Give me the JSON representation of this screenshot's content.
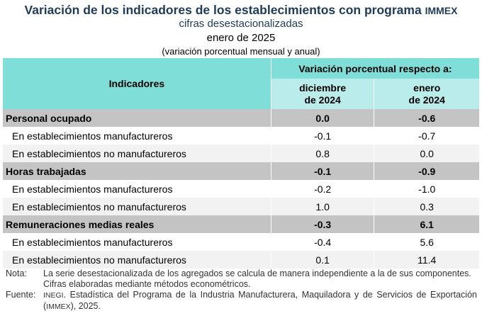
{
  "header": {
    "title": "Variación de los indicadores de los establecimientos con programa",
    "title_tag": "IMMEX",
    "subtitle": "cifras desestacionalizadas",
    "date": "enero de 2025",
    "unit": "(variación porcentual mensual y anual)"
  },
  "table": {
    "col_indicadores": "Indicadores",
    "col_group": "Variación porcentual respecto a:",
    "col_a": [
      "diciembre",
      "de 2024"
    ],
    "col_b": [
      "enero",
      "de 2024"
    ],
    "rows": [
      {
        "label": "Personal ocupado",
        "m": "0.0",
        "a": "-0.6"
      },
      {
        "label": "En establecimientos manufactureros",
        "m": "-0.1",
        "a": "-0.7"
      },
      {
        "label": "En establecimientos no manufactureros",
        "m": "0.8",
        "a": "0.0"
      },
      {
        "label": "Horas trabajadas",
        "m": "-0.1",
        "a": "-0.9"
      },
      {
        "label": "En establecimientos manufactureros",
        "m": "-0.2",
        "a": "-1.0"
      },
      {
        "label": "En establecimientos no manufactureros",
        "m": "1.0",
        "a": "0.3"
      },
      {
        "label": "Remuneraciones medias reales",
        "m": "-0.3",
        "a": "6.1"
      },
      {
        "label": "En establecimientos manufactureros",
        "m": "-0.4",
        "a": "5.6"
      },
      {
        "label": "En establecimientos no manufactureros",
        "m": "0.1",
        "a": "11.4"
      }
    ]
  },
  "notes": {
    "nota_label": "Nota:",
    "nota_1": "La serie desestacionalizada de los agregados se calcula de manera independiente a la de sus componentes.",
    "nota_2": "Cifras elaboradas mediante métodos econométricos.",
    "fuente_label": "Fuente:",
    "fuente_org": "INEGI",
    "fuente_text": ". Estadística del Programa de la Industria Manufacturera, Maquiladora y de Servicios de Exportación (",
    "fuente_tag": "IMMEX",
    "fuente_end": "), 2025."
  }
}
